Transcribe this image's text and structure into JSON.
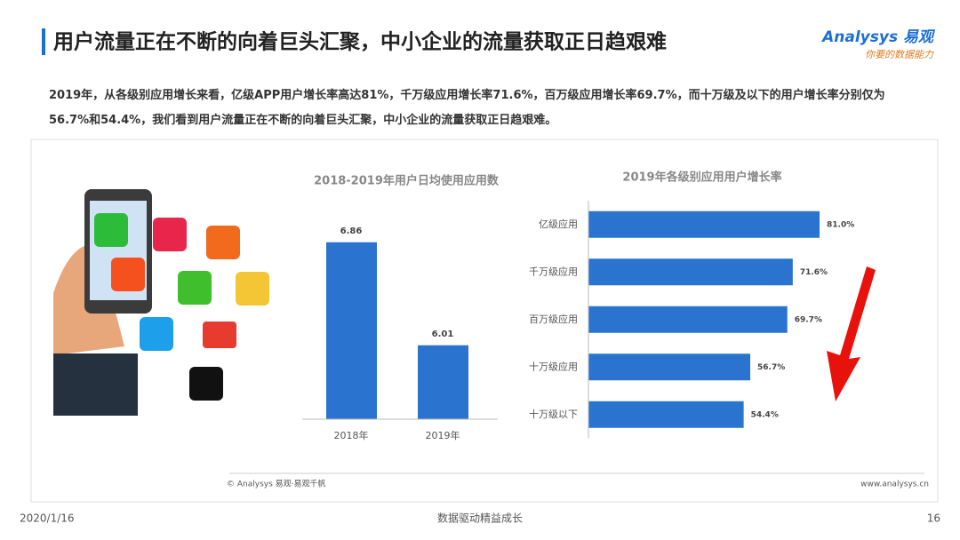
{
  "header": {
    "title": "用户流量正在不断的向着巨头汇聚，中小企业的流量获取正日趋艰难",
    "logo": "Analysys 易观",
    "slogan": "你要的数据能力"
  },
  "body": "2019年，从各级别应用增长来看，亿级APP用户增长率高达81%，千万级应用增长率71.6%，百万级应用增长率69.7%，而十万级及以下的用户增长率分别仅为56.7%和54.4%，我们看到用户流量正在不断的向着巨头汇聚，中小企业的流量获取正日趋艰难。",
  "chart_data": [
    {
      "type": "bar",
      "title": "2018-2019年用户日均使用应用数",
      "categories": [
        "2018年",
        "2019年"
      ],
      "values": [
        6.86,
        6.01
      ],
      "color": "#2a74cf",
      "ylim": [
        5.4,
        7.1
      ]
    },
    {
      "type": "hbar",
      "title": "2019年各级别应用用户增长率",
      "categories": [
        "亿级应用",
        "千万级应用",
        "百万级应用",
        "十万级应用",
        "十万级以下"
      ],
      "values": [
        81.0,
        71.6,
        69.7,
        56.7,
        54.4
      ],
      "value_labels": [
        "81.0%",
        "71.6%",
        "69.7%",
        "56.7%",
        "54.4%"
      ],
      "color": "#2a74cf",
      "xlim": [
        0,
        100
      ]
    }
  ],
  "footer": {
    "source": "© Analysys 易观·易观千帆",
    "site": "www.analysys.cn",
    "date": "2020/1/16",
    "motto": "数据驱动精益成长",
    "page": "16"
  }
}
